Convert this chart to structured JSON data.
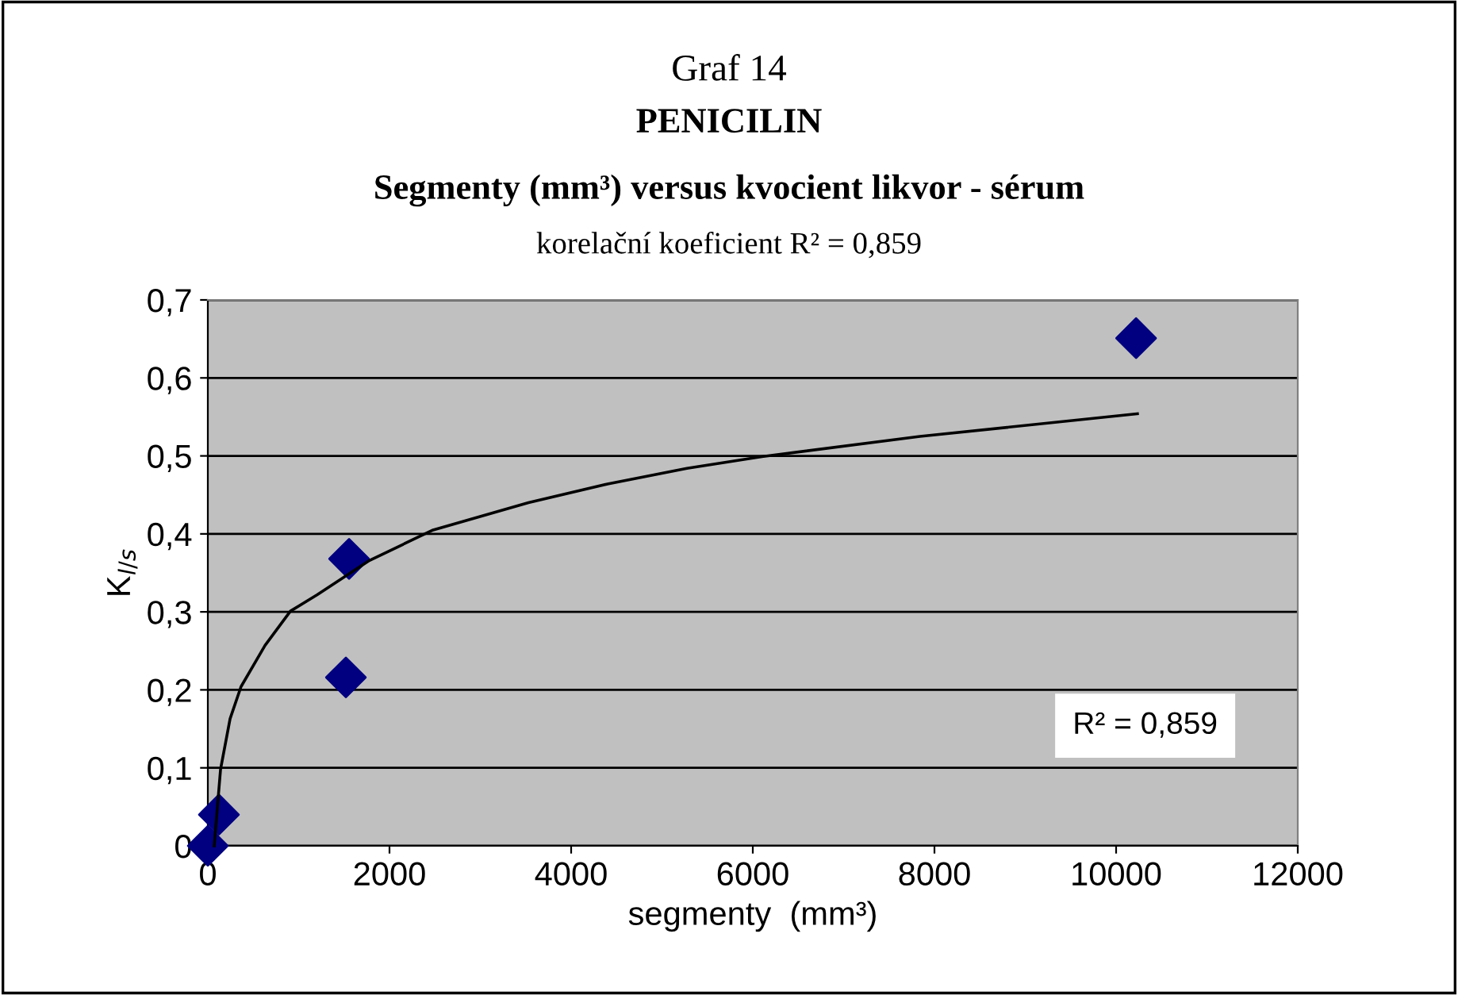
{
  "chart_data": {
    "type": "scatter",
    "title": "PENICILIN",
    "subtitle": "Segmenty (mm³) versus kvocient likvor - sérum",
    "annotations": [
      "Graf 14",
      "korelační koeficient R² = 0,859",
      "R² = 0,859"
    ],
    "xlabel": "segmenty  (mm³)",
    "ylabel": "K$_{l/s}$",
    "series": [
      {
        "color": "#000080",
        "marker": "diamond",
        "x": [
          0,
          122,
          1555,
          1520,
          10220
        ],
        "values": [
          0,
          0.04,
          0.368,
          0.216,
          0.651
        ]
      },
      {
        "type": "line",
        "color": "#000000",
        "marker": "none",
        "line_style": "solid",
        "x": [
          70,
          140,
          245,
          365,
          630,
          910,
          1205,
          1780,
          2480,
          3530,
          4400,
          5275,
          6100,
          7840,
          10235
        ],
        "values": [
          0,
          0.098,
          0.163,
          0.204,
          0.257,
          0.301,
          0.322,
          0.366,
          0.405,
          0.44,
          0.464,
          0.484,
          0.499,
          0.525,
          0.554
        ]
      }
    ],
    "xlim": [
      0,
      12000
    ],
    "xticks": [
      0,
      2000,
      4000,
      6000,
      8000,
      10000,
      12000
    ],
    "ylim": [
      0,
      0.7
    ],
    "yticks": [
      {
        "value": 0,
        "label": "0"
      },
      {
        "value": 0.1,
        "label": "0,1"
      },
      {
        "value": 0.2,
        "label": "0,2"
      },
      {
        "value": 0.3,
        "label": "0,3"
      },
      {
        "value": 0.4,
        "label": "0,4"
      },
      {
        "value": 0.5,
        "label": "0,5"
      },
      {
        "value": 0.6,
        "label": "0,6"
      },
      {
        "value": 0.7,
        "label": "0,7"
      }
    ],
    "grid": "y",
    "legend": false
  }
}
